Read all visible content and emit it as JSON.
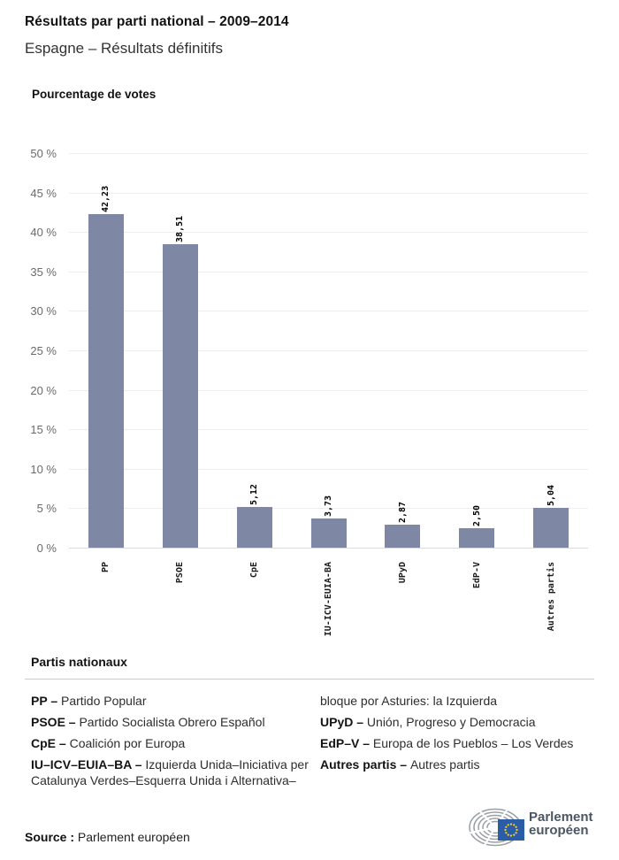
{
  "header": {
    "title": "Résultats par parti national – 2009–2014",
    "subtitle": "Espagne – Résultats définitifs"
  },
  "chart_data": {
    "type": "bar",
    "title": "Pourcentage de votes",
    "categories": [
      "PP",
      "PSOE",
      "CpE",
      "IU-ICV-EUIA-BA",
      "UPyD",
      "EdP-V",
      "Autres partis"
    ],
    "values": [
      42.23,
      38.51,
      5.12,
      3.73,
      2.87,
      2.5,
      5.04
    ],
    "value_labels": [
      "42,23",
      "38,51",
      "5,12",
      "3,73",
      "2,87",
      "2,50",
      "5,04"
    ],
    "xlabel": "",
    "ylabel": "Pourcentage de votes",
    "ylim": [
      0,
      50
    ],
    "ytick_step": 5,
    "y_tick_labels": [
      "0 %",
      "5 %",
      "10 %",
      "15 %",
      "20 %",
      "25 %",
      "30 %",
      "35 %",
      "40 %",
      "45 %",
      "50 %"
    ],
    "grid": true,
    "legend_position": "none",
    "bar_color": "#7e87a3"
  },
  "legend": {
    "heading": "Partis nationaux",
    "columns": [
      [
        {
          "abbr": "PP – ",
          "name": "Partido Popular"
        },
        {
          "abbr": "PSOE – ",
          "name": "Partido Socialista Obrero Español"
        },
        {
          "abbr": "CpE – ",
          "name": "Coalición por Europa"
        },
        {
          "abbr": "IU–ICV–EUIA–BA – ",
          "name": "Izquierda Unida–Iniciativa per Catalunya Verdes–Esquerra Unida i Alternativa–"
        }
      ],
      [
        {
          "abbr": "",
          "name": "bloque por Asturies: la Izquierda"
        },
        {
          "abbr": "UPyD – ",
          "name": "Unión, Progreso y Democracia"
        },
        {
          "abbr": "EdP–V – ",
          "name": "Europa de los Pueblos – Los Verdes"
        },
        {
          "abbr": "Autres partis – ",
          "name": "Autres partis"
        }
      ]
    ]
  },
  "footer": {
    "source_label": "Source :",
    "source_value": "Parlement européen",
    "logo": {
      "line1": "Parlement",
      "line2": "européen",
      "eu_blue": "#2a5ca8",
      "star_yellow": "#ffd617",
      "arc_gray": "#9aa0a6"
    }
  },
  "colors": {
    "bar": "#7e87a3",
    "grid_line": "#ececf1",
    "zero_line": "#d7dbe7",
    "tick_text": "#6b6b6b",
    "text_dark": "#1a1a1a"
  }
}
